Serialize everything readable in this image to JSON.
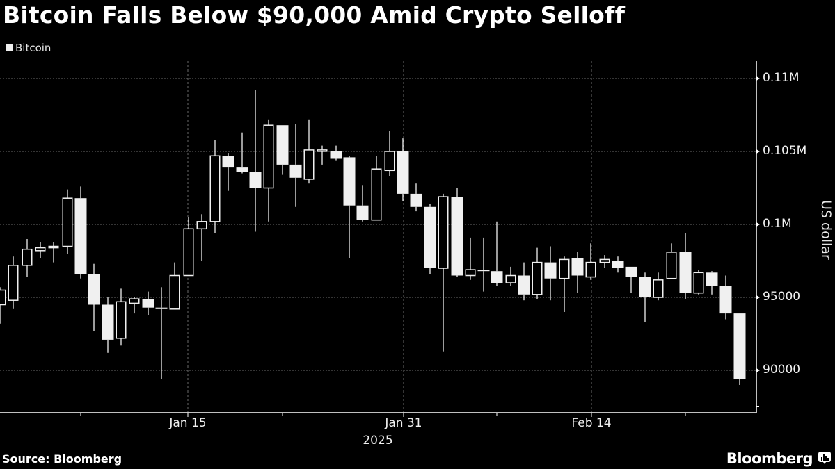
{
  "title": "Bitcoin Falls Below $90,000 Amid Crypto Selloff",
  "legend": {
    "label": "Bitcoin"
  },
  "y_axis": {
    "title": "US dollar",
    "ticks": [
      {
        "label": "0.11M",
        "value": 110000
      },
      {
        "label": "0.105M",
        "value": 105000
      },
      {
        "label": "0.1M",
        "value": 100000
      },
      {
        "label": "95000",
        "value": 95000
      },
      {
        "label": "90000",
        "value": 90000
      }
    ]
  },
  "x_axis": {
    "ticks": [
      {
        "label": "Jan 15",
        "x": 270
      },
      {
        "label": "Jan 31",
        "x": 580
      },
      {
        "label": "Feb 14",
        "x": 850
      }
    ],
    "year": "2025"
  },
  "footer": {
    "source": "Source: Bloomberg",
    "brand": "Bloomberg",
    "brand_icon": "bloomberg-chart-bubble-icon"
  },
  "colors": {
    "background": "#000000",
    "candle": "#f0f0f0",
    "grid": "#6a6a6a",
    "text": "#ffffff"
  },
  "chart_data": {
    "type": "candlestick",
    "title": "Bitcoin Falls Below $90,000 Amid Crypto Selloff",
    "xlabel": "2025",
    "ylabel": "US dollar",
    "ylim": [
      87000,
      112000
    ],
    "legend": [
      "Bitcoin"
    ],
    "legend_position": "top-left",
    "grid": true,
    "x_tick_labels": [
      "Jan 15",
      "Jan 31",
      "Feb 14"
    ],
    "y_tick_labels": [
      "90000",
      "95000",
      "0.1M",
      "0.105M",
      "0.11M"
    ],
    "candles": [
      {
        "x": 1,
        "open": 94500,
        "close": 95500,
        "high": 95700,
        "low": 93200
      },
      {
        "x": 19,
        "open": 94800,
        "close": 97200,
        "high": 97800,
        "low": 94200
      },
      {
        "x": 39,
        "open": 97200,
        "close": 98300,
        "high": 99000,
        "low": 96400
      },
      {
        "x": 58,
        "open": 98200,
        "close": 98400,
        "high": 98800,
        "low": 97700
      },
      {
        "x": 77,
        "open": 98400,
        "close": 98500,
        "high": 98800,
        "low": 97400
      },
      {
        "x": 97,
        "open": 98500,
        "close": 101800,
        "high": 102400,
        "low": 98000
      },
      {
        "x": 116,
        "open": 101800,
        "close": 96600,
        "high": 102600,
        "low": 96300
      },
      {
        "x": 135,
        "open": 96600,
        "close": 94500,
        "high": 97300,
        "low": 92700
      },
      {
        "x": 155,
        "open": 94500,
        "close": 92100,
        "high": 95000,
        "low": 91200
      },
      {
        "x": 174,
        "open": 92200,
        "close": 94700,
        "high": 95600,
        "low": 91700
      },
      {
        "x": 193,
        "open": 94600,
        "close": 94900,
        "high": 95000,
        "low": 93900
      },
      {
        "x": 213,
        "open": 94900,
        "close": 94300,
        "high": 95400,
        "low": 93800
      },
      {
        "x": 232,
        "open": 94300,
        "close": 94200,
        "high": 95700,
        "low": 89400
      },
      {
        "x": 251,
        "open": 94200,
        "close": 96500,
        "high": 97400,
        "low": 94200
      },
      {
        "x": 271,
        "open": 96500,
        "close": 99700,
        "high": 100500,
        "low": 96500
      },
      {
        "x": 290,
        "open": 99700,
        "close": 100200,
        "high": 100700,
        "low": 97500
      },
      {
        "x": 309,
        "open": 100200,
        "close": 104700,
        "high": 105800,
        "low": 99400
      },
      {
        "x": 328,
        "open": 104700,
        "close": 103900,
        "high": 104900,
        "low": 102300
      },
      {
        "x": 348,
        "open": 103900,
        "close": 103600,
        "high": 106300,
        "low": 103500
      },
      {
        "x": 367,
        "open": 103600,
        "close": 102500,
        "high": 109200,
        "low": 99500
      },
      {
        "x": 386,
        "open": 102500,
        "close": 106800,
        "high": 107200,
        "low": 100200
      },
      {
        "x": 406,
        "open": 106800,
        "close": 104100,
        "high": 106800,
        "low": 103400
      },
      {
        "x": 425,
        "open": 104100,
        "close": 103200,
        "high": 106900,
        "low": 101200
      },
      {
        "x": 444,
        "open": 103100,
        "close": 105100,
        "high": 107200,
        "low": 102800
      },
      {
        "x": 463,
        "open": 105100,
        "close": 105100,
        "high": 105400,
        "low": 104100
      },
      {
        "x": 483,
        "open": 105000,
        "close": 104500,
        "high": 105400,
        "low": 104400
      },
      {
        "x": 502,
        "open": 104600,
        "close": 101300,
        "high": 104700,
        "low": 97700
      },
      {
        "x": 521,
        "open": 101300,
        "close": 100300,
        "high": 102700,
        "low": 100200
      },
      {
        "x": 541,
        "open": 100300,
        "close": 103800,
        "high": 104700,
        "low": 100300
      },
      {
        "x": 560,
        "open": 103700,
        "close": 105000,
        "high": 106400,
        "low": 103300
      },
      {
        "x": 579,
        "open": 105000,
        "close": 102100,
        "high": 105900,
        "low": 101600
      },
      {
        "x": 598,
        "open": 102100,
        "close": 101200,
        "high": 102800,
        "low": 100900
      },
      {
        "x": 618,
        "open": 101200,
        "close": 97000,
        "high": 101400,
        "low": 96600
      },
      {
        "x": 637,
        "open": 97000,
        "close": 101900,
        "high": 102100,
        "low": 91300
      },
      {
        "x": 657,
        "open": 101900,
        "close": 96500,
        "high": 102500,
        "low": 96400
      },
      {
        "x": 676,
        "open": 96500,
        "close": 96900,
        "high": 99100,
        "low": 96200
      },
      {
        "x": 695,
        "open": 96900,
        "close": 96800,
        "high": 99100,
        "low": 95400
      },
      {
        "x": 714,
        "open": 96800,
        "close": 96000,
        "high": 100200,
        "low": 95800
      },
      {
        "x": 734,
        "open": 96000,
        "close": 96500,
        "high": 97100,
        "low": 95800
      },
      {
        "x": 753,
        "open": 96500,
        "close": 95200,
        "high": 97400,
        "low": 94800
      },
      {
        "x": 772,
        "open": 95200,
        "close": 97400,
        "high": 98400,
        "low": 94900
      },
      {
        "x": 791,
        "open": 97400,
        "close": 96300,
        "high": 98500,
        "low": 94800
      },
      {
        "x": 811,
        "open": 96300,
        "close": 97600,
        "high": 97800,
        "low": 94000
      },
      {
        "x": 830,
        "open": 97700,
        "close": 96500,
        "high": 98100,
        "low": 95300
      },
      {
        "x": 849,
        "open": 96400,
        "close": 97400,
        "high": 98700,
        "low": 96200
      },
      {
        "x": 869,
        "open": 97400,
        "close": 97600,
        "high": 97900,
        "low": 97000
      },
      {
        "x": 888,
        "open": 97500,
        "close": 97000,
        "high": 97800,
        "low": 96700
      },
      {
        "x": 907,
        "open": 97100,
        "close": 96400,
        "high": 97100,
        "low": 95300
      },
      {
        "x": 927,
        "open": 96400,
        "close": 95000,
        "high": 96700,
        "low": 93300
      },
      {
        "x": 946,
        "open": 95000,
        "close": 96200,
        "high": 96700,
        "low": 94800
      },
      {
        "x": 965,
        "open": 96300,
        "close": 98100,
        "high": 98700,
        "low": 96300
      },
      {
        "x": 985,
        "open": 98100,
        "close": 95300,
        "high": 99400,
        "low": 94900
      },
      {
        "x": 1004,
        "open": 95300,
        "close": 96700,
        "high": 96900,
        "low": 95200
      },
      {
        "x": 1023,
        "open": 96700,
        "close": 95800,
        "high": 96800,
        "low": 95200
      },
      {
        "x": 1043,
        "open": 95800,
        "close": 93900,
        "high": 96500,
        "low": 93500
      },
      {
        "x": 1063,
        "open": 93900,
        "close": 89400,
        "high": 93900,
        "low": 89000
      }
    ]
  }
}
